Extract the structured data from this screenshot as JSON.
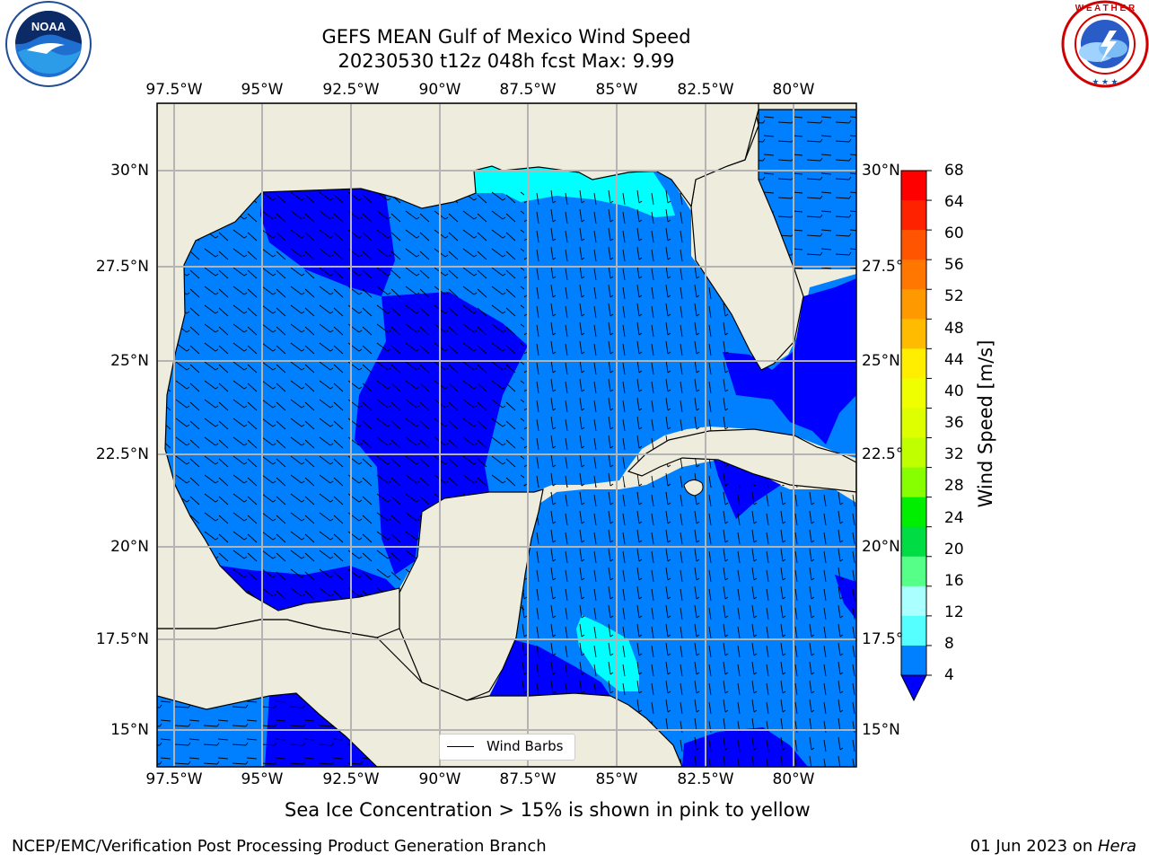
{
  "title_line1": "GEFS MEAN Gulf of Mexico Wind Speed",
  "title_line2": "20230530 t12z 048h fcst   Max: 9.99",
  "lon_labels": [
    "97.5°W",
    "95°W",
    "92.5°W",
    "90°W",
    "87.5°W",
    "85°W",
    "82.5°W",
    "80°W"
  ],
  "lat_labels_left": [
    "30°N",
    "27.5°N",
    "25°N",
    "22.5°N",
    "20°N",
    "17.5°N",
    "15°N"
  ],
  "lat_labels_right": [
    "30°N",
    "27.5°",
    "25°N",
    "22.5°",
    "20°N",
    "17.5°",
    "15°N"
  ],
  "legend": {
    "label": "Wind Barbs"
  },
  "colorbar": {
    "label": "Wind Speed [m/s]",
    "ticks": [
      "68",
      "64",
      "60",
      "56",
      "52",
      "48",
      "44",
      "40",
      "36",
      "32",
      "28",
      "24",
      "20",
      "16",
      "12",
      "8",
      "4"
    ],
    "colors": [
      "#ff0000",
      "#ff2200",
      "#ff5500",
      "#ff7700",
      "#ff9900",
      "#ffbb00",
      "#ffee00",
      "#f0ff00",
      "#ddff00",
      "#c0ff00",
      "#88ff00",
      "#00ee00",
      "#00dd44",
      "#55ff88",
      "#aaffff",
      "#55ffff",
      "#00ffff",
      "#0080ff"
    ],
    "lower_extension_color": "#0000ff"
  },
  "note": "Sea Ice Concentration > 15% is shown in pink to yellow",
  "footer_left": "NCEP/EMC/Verification Post Processing Product Generation Branch",
  "footer_right_date": "01 Jun 2023 on ",
  "footer_right_machine": "Hera",
  "logos": {
    "left": "NOAA",
    "right": "NATIONAL WEATHER SERVICE"
  },
  "colors": {
    "land": "#eeecdc",
    "wind_4_8": "#0080ff",
    "wind_lt4": "#0000ff",
    "wind_8_12": "#00ffff",
    "grid": "#b4b4b4"
  }
}
